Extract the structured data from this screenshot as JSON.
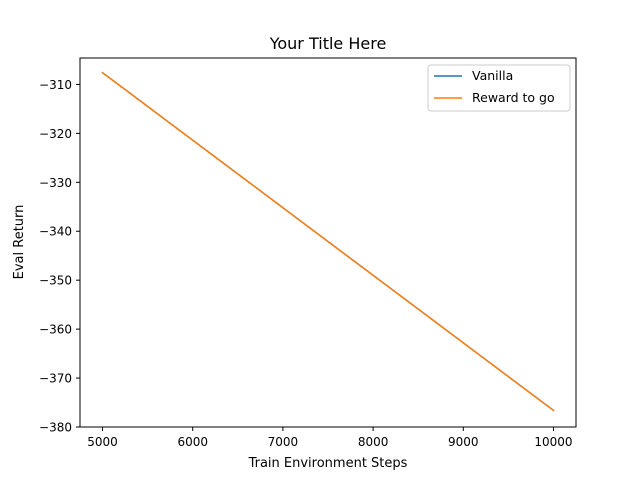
{
  "chart_data": {
    "type": "line",
    "title": "Your Title Here",
    "xlabel": "Train Environment Steps",
    "ylabel": "Eval Return",
    "xlim": [
      4750,
      10250
    ],
    "ylim": [
      -380,
      -304.6
    ],
    "x_ticks": [
      5000,
      6000,
      7000,
      8000,
      9000,
      10000
    ],
    "x_tick_labels": [
      "5000",
      "6000",
      "7000",
      "8000",
      "9000",
      "10000"
    ],
    "y_ticks": [
      -310,
      -320,
      -330,
      -340,
      -350,
      -360,
      -370,
      -380
    ],
    "y_tick_labels": [
      "−310",
      "−320",
      "−330",
      "−340",
      "−350",
      "−360",
      "−370",
      "−380"
    ],
    "grid": false,
    "legend_position": "top-right",
    "series": [
      {
        "name": "Vanilla",
        "color": "#1f77b4",
        "x": [
          5000,
          10000
        ],
        "y": [
          -307.6,
          -376.6
        ]
      },
      {
        "name": "Reward to go",
        "color": "#ff7f0e",
        "x": [
          5000,
          10000
        ],
        "y": [
          -307.6,
          -376.6
        ]
      }
    ]
  }
}
